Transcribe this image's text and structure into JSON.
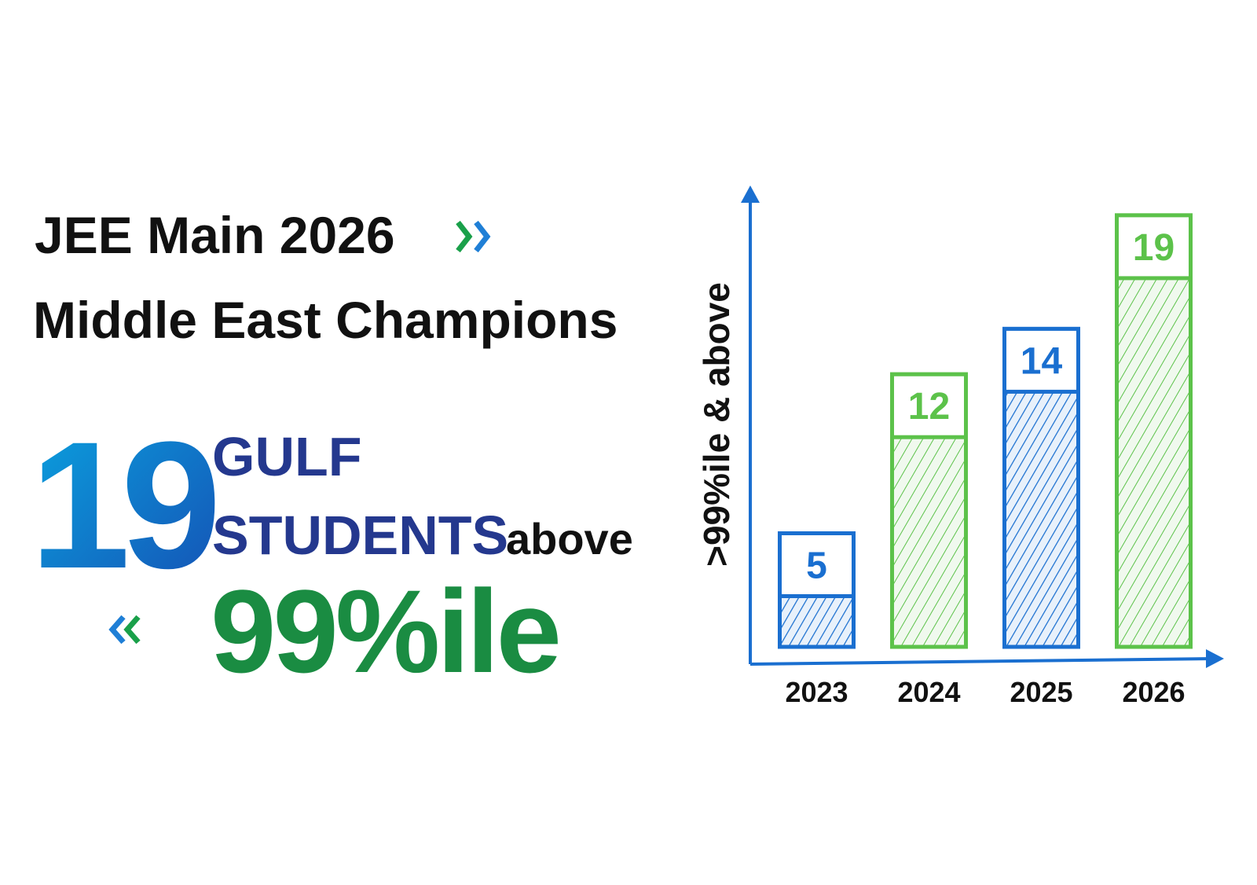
{
  "headline": {
    "line1": "JEE Main 2026",
    "line2": "Middle East Champions"
  },
  "highlight": {
    "count": "19",
    "word1": "GULF",
    "word2": "STUDENTS",
    "word3": "above",
    "percentile": "99%ile"
  },
  "chart_data": {
    "type": "bar",
    "y_label": ">99%ile & above",
    "categories": [
      "2023",
      "2024",
      "2025",
      "2026"
    ],
    "series": [
      {
        "values": [
          5,
          12,
          14,
          19
        ],
        "colors": [
          "#1a6fd0",
          "#5cc24a",
          "#1a6fd0",
          "#5cc24a"
        ]
      }
    ],
    "ylim": [
      0,
      20
    ]
  }
}
